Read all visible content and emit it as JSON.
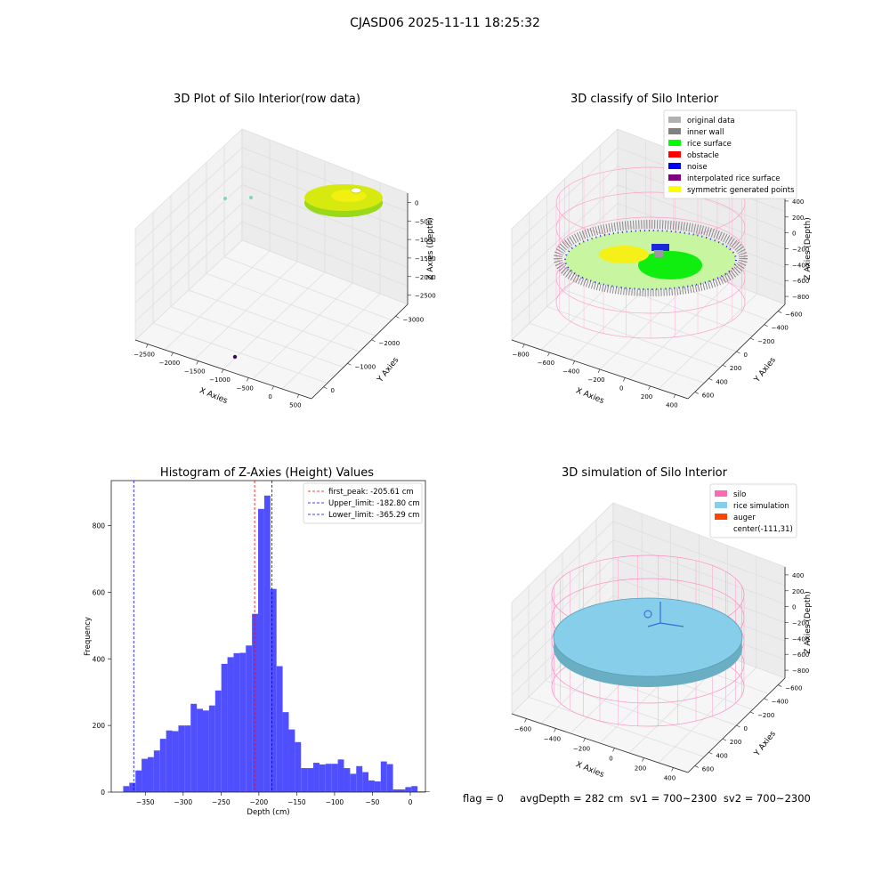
{
  "figure": {
    "suptitle": "CJASD06 2025-11-11 18:25:32",
    "footer": "flag = 0     avgDepth = 282 cm  sv1 = 700~2300  sv2 = 700~2300"
  },
  "colors": {
    "original": "#b0b0b0",
    "inner_wall": "#808080",
    "rice_surface": "#00ff00",
    "obstacle": "#ff0000",
    "noise": "#0000ff",
    "interp": "#800080",
    "symmetric": "#ffff00",
    "silo": "#ff69b4",
    "rice_sim": "#87ceeb",
    "auger": "#ff4500",
    "hist_bar": "#4f4fff"
  },
  "panel1": {
    "title": "3D Plot of Silo Interior(row data)",
    "xlabel": "X Axies",
    "ylabel": "Y Axies",
    "zlabel": "Z Axies (Depth)",
    "xticks": [
      "−2500",
      "−2000",
      "−1500",
      "−1000",
      "−500",
      "0",
      "500"
    ],
    "yticks": [
      "−3000",
      "−2000",
      "−1000",
      "0"
    ],
    "zticks": [
      "0",
      "−500",
      "−1000",
      "−1500",
      "−2000",
      "−2500"
    ]
  },
  "panel2": {
    "title": "3D classify of Silo Interior",
    "xlabel": "X Axies",
    "ylabel": "Y Axies",
    "zlabel": "Z Axies (Depth)",
    "xticks": [
      "−800",
      "−600",
      "−400",
      "−200",
      "0",
      "200",
      "400"
    ],
    "yticks": [
      "−600",
      "−400",
      "−200",
      "0",
      "200",
      "400",
      "600"
    ],
    "zticks": [
      "400",
      "200",
      "0",
      "−200",
      "−400",
      "−600",
      "−800"
    ],
    "legend": [
      {
        "label": "original data",
        "color": "#b0b0b0"
      },
      {
        "label": "inner wall",
        "color": "#808080"
      },
      {
        "label": "rice surface",
        "color": "#00ff00"
      },
      {
        "label": "obstacle",
        "color": "#ff0000"
      },
      {
        "label": "noise",
        "color": "#0000ff"
      },
      {
        "label": "interpolated rice surface",
        "color": "#800080"
      },
      {
        "label": "symmetric generated points",
        "color": "#ffff00"
      }
    ]
  },
  "panel4": {
    "title": "3D simulation of Silo Interior",
    "xlabel": "X Axies",
    "ylabel": "Y Axies",
    "zlabel": "Z Axies (Depth)",
    "xticks": [
      "−600",
      "−400",
      "−200",
      "0",
      "200",
      "400"
    ],
    "yticks": [
      "−600",
      "−400",
      "−200",
      "0",
      "200",
      "400",
      "600"
    ],
    "zticks": [
      "400",
      "200",
      "0",
      "−200",
      "−400",
      "−600",
      "−800"
    ],
    "legend": [
      {
        "label": "silo",
        "color": "#ff69b4"
      },
      {
        "label": "rice simulation",
        "color": "#87ceeb"
      },
      {
        "label": "auger",
        "color": "#ff4500"
      },
      {
        "label": "center(-111,31)",
        "color": ""
      }
    ]
  },
  "chart_data": {
    "type": "bar",
    "title": "Histogram of Z-Axies (Height) Values",
    "xlabel": "Depth (cm)",
    "ylabel": "Frequency",
    "xlim": [
      -395,
      20
    ],
    "ylim": [
      0,
      935
    ],
    "xticks": [
      -350,
      -300,
      -250,
      -200,
      -150,
      -100,
      -50,
      0
    ],
    "yticks": [
      0,
      200,
      400,
      600,
      800
    ],
    "bin_width": 8.1,
    "bin_start": -379.2,
    "values": [
      18,
      28,
      65,
      100,
      105,
      125,
      160,
      185,
      183,
      200,
      200,
      265,
      250,
      245,
      260,
      305,
      385,
      405,
      417,
      418,
      440,
      535,
      850,
      890,
      610,
      378,
      240,
      188,
      150,
      72,
      72,
      88,
      83,
      85,
      85,
      98,
      72,
      55,
      78,
      60,
      35,
      32,
      92,
      84,
      8,
      8,
      15,
      18,
      2,
      2
    ],
    "vlines": [
      {
        "label": "first_peak: -205.61 cm",
        "x": -205.61,
        "color": "#ff0000"
      },
      {
        "label": "Upper_limit: -182.80 cm",
        "x": -182.8,
        "color": "#0000ff"
      },
      {
        "label": "Lower_limit: -365.29 cm",
        "x": -365.29,
        "color": "#0000ff"
      }
    ],
    "grid": false,
    "legend_position": "top-right"
  }
}
